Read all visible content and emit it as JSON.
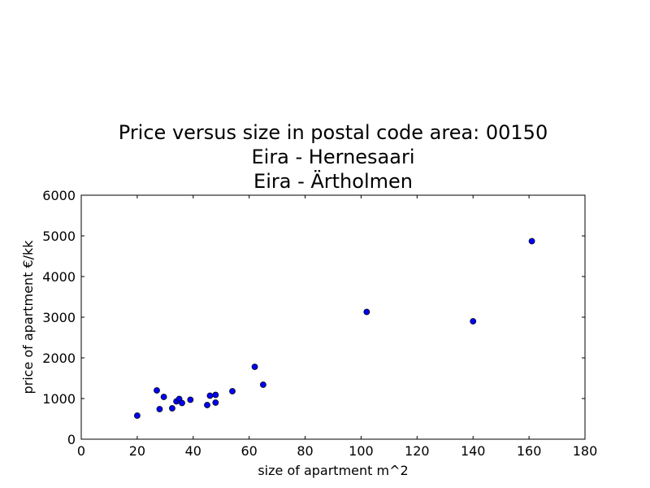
{
  "chart_data": {
    "type": "scatter",
    "title": [
      "Price versus size in postal code area: 00150",
      "Eira - Hernesaari",
      "Eira - Ärtholmen"
    ],
    "xlabel": "size of apartment m^2",
    "ylabel": "price of apartment €/kk",
    "xlim": [
      0,
      180
    ],
    "ylim": [
      0,
      6000
    ],
    "xticks": [
      0,
      20,
      40,
      60,
      80,
      100,
      120,
      140,
      160,
      180
    ],
    "yticks": [
      0,
      1000,
      2000,
      3000,
      4000,
      5000,
      6000
    ],
    "grid": false,
    "marker_color": "#0000ff",
    "marker_edge_color": "#000000",
    "points": [
      {
        "x": 20,
        "y": 580
      },
      {
        "x": 27,
        "y": 1200
      },
      {
        "x": 28,
        "y": 740
      },
      {
        "x": 29.5,
        "y": 1040
      },
      {
        "x": 32.5,
        "y": 760
      },
      {
        "x": 34,
        "y": 930
      },
      {
        "x": 35,
        "y": 990
      },
      {
        "x": 36,
        "y": 890
      },
      {
        "x": 39,
        "y": 970
      },
      {
        "x": 45,
        "y": 840
      },
      {
        "x": 46,
        "y": 1070
      },
      {
        "x": 48,
        "y": 1090
      },
      {
        "x": 48,
        "y": 900
      },
      {
        "x": 54,
        "y": 1180
      },
      {
        "x": 62,
        "y": 1780
      },
      {
        "x": 65,
        "y": 1340
      },
      {
        "x": 102,
        "y": 3130
      },
      {
        "x": 140,
        "y": 2900
      },
      {
        "x": 161,
        "y": 4870
      }
    ]
  }
}
